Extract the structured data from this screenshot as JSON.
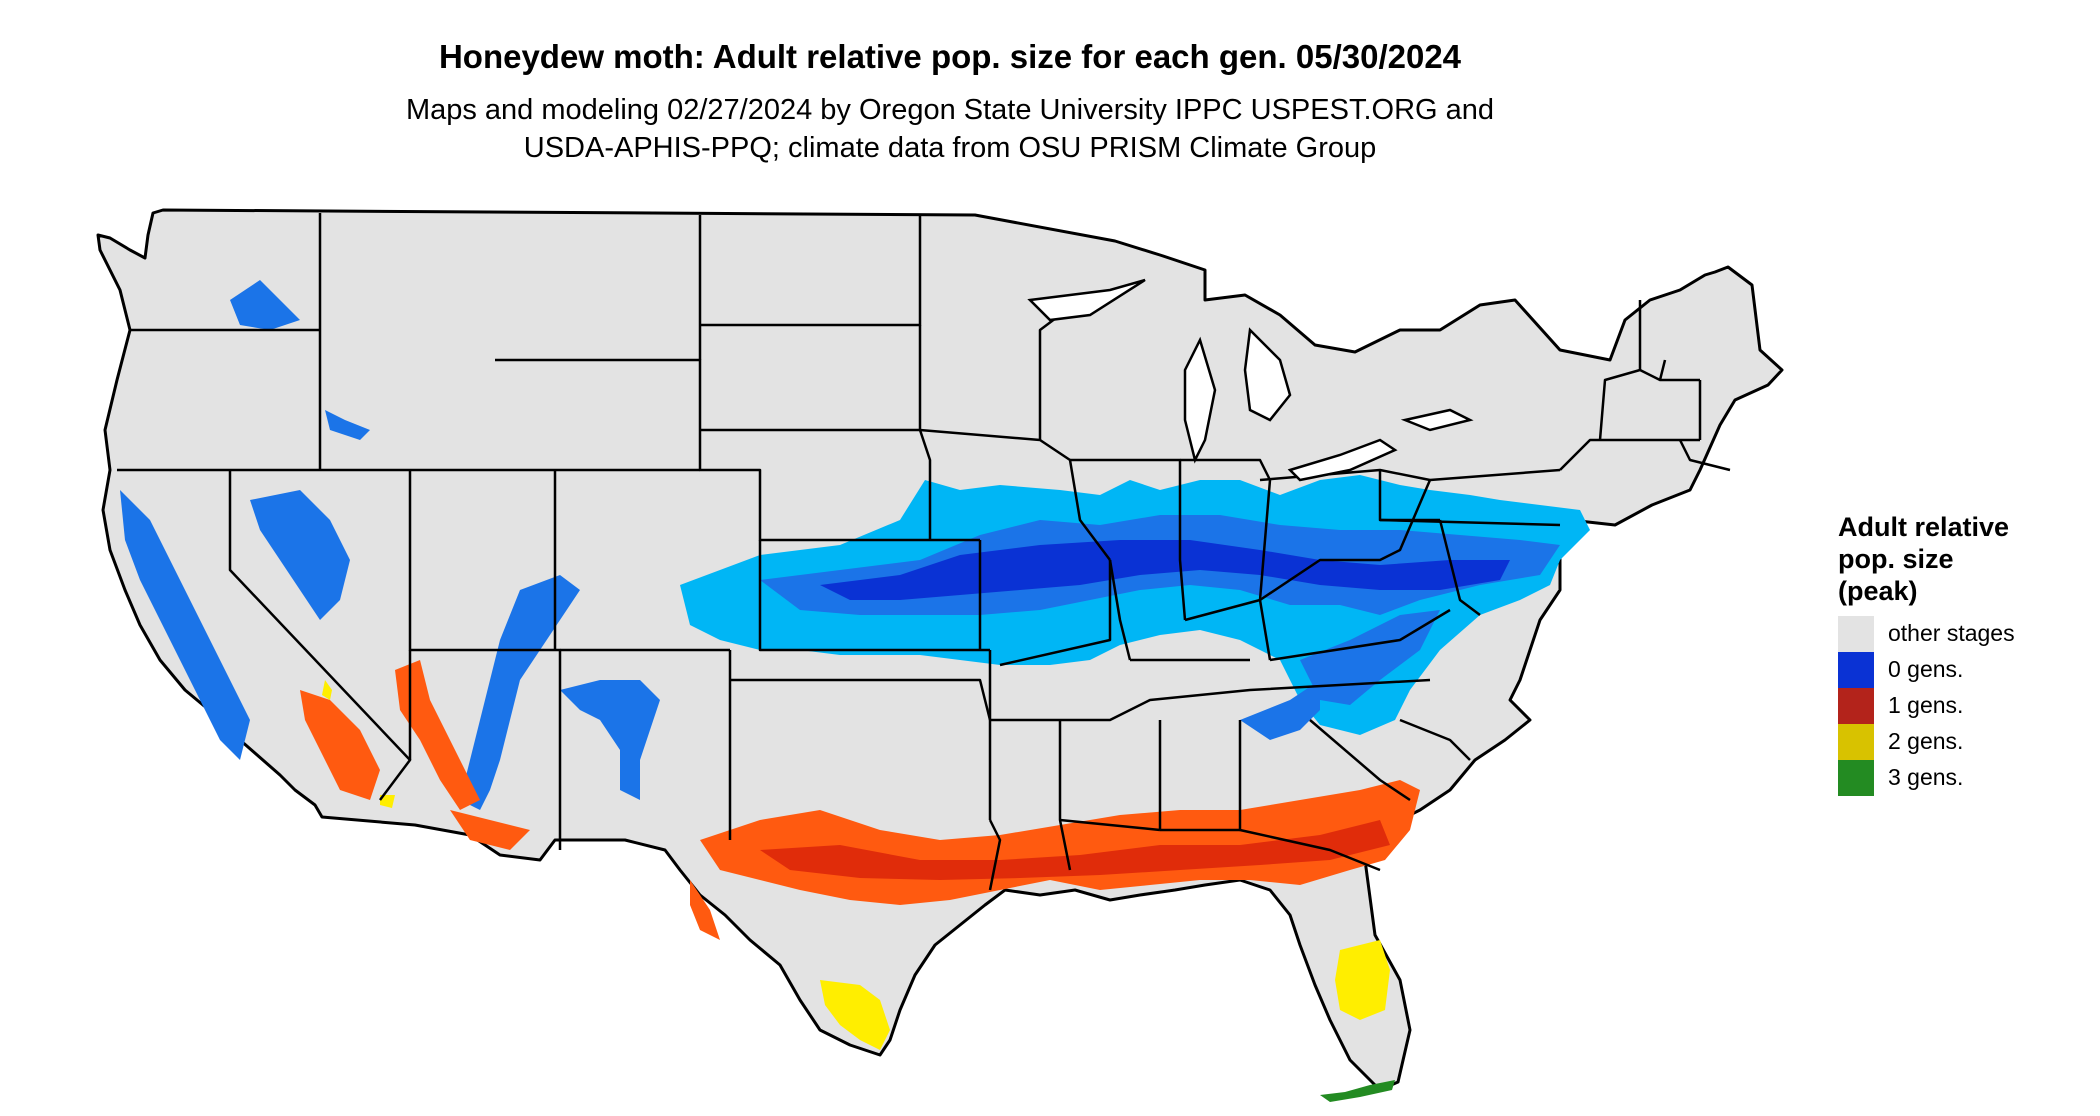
{
  "title": "Honeydew moth: Adult relative pop. size for each gen. 05/30/2024",
  "subtitle_line1": "Maps and modeling 02/27/2024 by Oregon State University IPPC USPEST.ORG and",
  "subtitle_line2": "USDA-APHIS-PPQ; climate data from OSU PRISM Climate Group",
  "legend": {
    "title_line1": "Adult relative",
    "title_line2": "pop. size",
    "title_line3": "(peak)",
    "items": [
      {
        "label": "other stages",
        "color": "#e3e3e3"
      },
      {
        "label": "0 gens.",
        "color": "#0a32d4"
      },
      {
        "label": "1 gens.",
        "color": "#b3231b"
      },
      {
        "label": "2 gens.",
        "color": "#d8c200"
      },
      {
        "label": "3 gens.",
        "color": "#238b22"
      }
    ]
  },
  "map_colors": {
    "land": "#e3e3e3",
    "border": "#000000",
    "zero_gen_light": "#00b6f5",
    "zero_gen_mid": "#1b74e8",
    "zero_gen_dark": "#0a32d4",
    "one_gen_light": "#ff5a10",
    "one_gen_dark": "#e02c0a",
    "two_gen": "#ffee00",
    "three_gen": "#238b22"
  }
}
